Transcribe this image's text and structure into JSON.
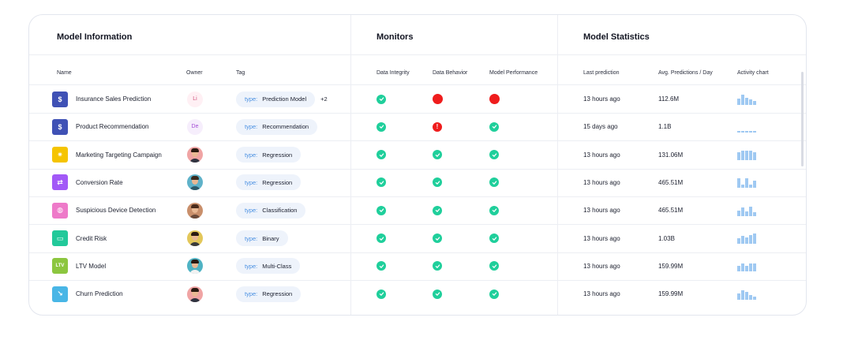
{
  "sections": {
    "model_info": "Model Information",
    "monitors": "Monitors",
    "model_statistics": "Model Statistics"
  },
  "columns": {
    "name": "Name",
    "owner": "Owner",
    "tag": "Tag",
    "data_integrity": "Data Integrity",
    "data_behavior": "Data Behavior",
    "model_performance": "Model Performance",
    "last_prediction": "Last prediction",
    "avg_predictions": "Avg. Predictions / Day",
    "activity_chart": "Activity chart"
  },
  "colors": {
    "ok": "#1fcf9b",
    "fail": "#ef1c1c",
    "tag_key": "#4a90e2",
    "activity_bar": "#9fc9f2"
  },
  "rows": [
    {
      "name": "Insurance Sales Prediction",
      "icon": "dollar-badge-icon",
      "icon_glyph": "$",
      "icon_color": "#3f51b5",
      "owner": {
        "type": "initials",
        "initials": "Li",
        "text_color": "#d0507a",
        "bg": "#fff0f4"
      },
      "tag_key": "type:",
      "tag_value": "Prediction Model",
      "tag_extra": "+2",
      "data_integrity": "ok",
      "data_behavior": "fail",
      "model_performance": "fail",
      "last_prediction": "13 hours ago",
      "avg_predictions": "112.6M",
      "activity": [
        0.6,
        1.0,
        0.7,
        0.55,
        0.4
      ]
    },
    {
      "name": "Product Recommendation",
      "icon": "dollar-badge-icon",
      "icon_glyph": "$",
      "icon_color": "#3f51b5",
      "owner": {
        "type": "initials",
        "initials": "De",
        "text_color": "#a54fd6",
        "bg": "#f6eefc"
      },
      "tag_key": "type:",
      "tag_value": "Recommendation",
      "tag_extra": "",
      "data_integrity": "ok",
      "data_behavior": "warn",
      "model_performance": "ok",
      "last_prediction": "15 days ago",
      "avg_predictions": "1.1B",
      "activity": [
        0.15,
        0.15,
        0.15,
        0.15,
        0.15
      ]
    },
    {
      "name": "Marketing Targeting Campaign",
      "icon": "target-icon",
      "icon_glyph": "✷",
      "icon_color": "#f5c400",
      "owner": {
        "type": "avatar",
        "bg": "#f0a4a4",
        "hair": "#2a1a12",
        "shirt": "#2f3340"
      },
      "tag_key": "type:",
      "tag_value": "Regression",
      "tag_extra": "",
      "data_integrity": "ok",
      "data_behavior": "ok",
      "model_performance": "ok",
      "last_prediction": "13 hours ago",
      "avg_predictions": "131.06M",
      "activity": [
        0.75,
        0.9,
        0.9,
        0.9,
        0.75
      ]
    },
    {
      "name": "Conversion Rate",
      "icon": "conversion-icon",
      "icon_glyph": "⇄",
      "icon_color": "#a259f7",
      "owner": {
        "type": "avatar",
        "bg": "#5fb2c9",
        "hair": "#3a2a1e",
        "shirt": "#2d5b6b"
      },
      "tag_key": "type:",
      "tag_value": "Regression",
      "tag_extra": "",
      "data_integrity": "ok",
      "data_behavior": "ok",
      "model_performance": "ok",
      "last_prediction": "13 hours ago",
      "avg_predictions": "465.51M",
      "activity": [
        0.9,
        0.3,
        0.9,
        0.3,
        0.7
      ]
    },
    {
      "name": "Suspicious Device Detection",
      "icon": "brain-icon",
      "icon_glyph": "◍",
      "icon_color": "#ee7ac9",
      "owner": {
        "type": "avatar",
        "bg": "#c98f6b",
        "hair": "#4a2b1a",
        "shirt": "#6b4a3a"
      },
      "tag_key": "type:",
      "tag_value": "Classification",
      "tag_extra": "",
      "data_integrity": "ok",
      "data_behavior": "ok",
      "model_performance": "ok",
      "last_prediction": "13 hours ago",
      "avg_predictions": "465.51M",
      "activity": [
        0.55,
        0.85,
        0.45,
        0.9,
        0.4
      ]
    },
    {
      "name": "Credit Risk",
      "icon": "credit-card-icon",
      "icon_glyph": "▭",
      "icon_color": "#22c99a",
      "owner": {
        "type": "avatar",
        "bg": "#e3c75a",
        "hair": "#2a1a12",
        "shirt": "#3b3b3b"
      },
      "tag_key": "type:",
      "tag_value": "Binary",
      "tag_extra": "",
      "data_integrity": "ok",
      "data_behavior": "ok",
      "model_performance": "ok",
      "last_prediction": "13 hours ago",
      "avg_predictions": "1.03B",
      "activity": [
        0.5,
        0.75,
        0.6,
        0.85,
        1.0
      ]
    },
    {
      "name": "LTV Model",
      "icon": "ltv-icon",
      "icon_glyph": "LTV",
      "icon_color": "#8cc63f",
      "owner": {
        "type": "avatar",
        "bg": "#4fb3c4",
        "hair": "#2a1a12",
        "shirt": "#f2f2f2"
      },
      "tag_key": "type:",
      "tag_value": "Multi-Class",
      "tag_extra": "",
      "data_integrity": "ok",
      "data_behavior": "ok",
      "model_performance": "ok",
      "last_prediction": "13 hours ago",
      "avg_predictions": "159.99M",
      "activity": [
        0.55,
        0.8,
        0.5,
        0.8,
        0.75
      ]
    },
    {
      "name": "Churn Prediction",
      "icon": "trend-down-icon",
      "icon_glyph": "↘",
      "icon_color": "#49b6e6",
      "owner": {
        "type": "avatar",
        "bg": "#f0a4a4",
        "hair": "#2a1a12",
        "shirt": "#2f3340"
      },
      "tag_key": "type:",
      "tag_value": "Regression",
      "tag_extra": "",
      "data_integrity": "ok",
      "data_behavior": "ok",
      "model_performance": "ok",
      "last_prediction": "13 hours ago",
      "avg_predictions": "159.99M",
      "activity": [
        0.6,
        0.95,
        0.75,
        0.45,
        0.3
      ]
    }
  ]
}
